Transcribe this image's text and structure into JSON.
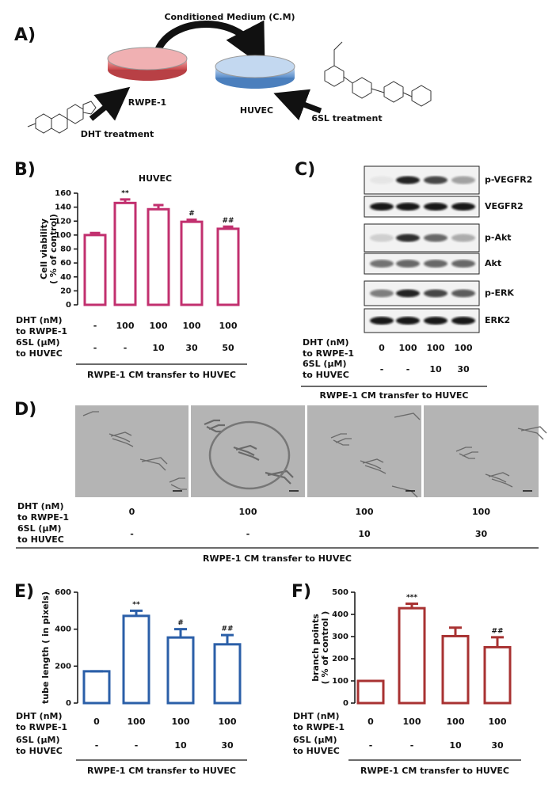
{
  "panel_a": {
    "label": "A)",
    "title": "Conditioned Medium (C.M)",
    "source": "RWPE-1",
    "target": "HUVEC",
    "left_treatment": "DHT treatment",
    "right_treatment": "6SL treatment"
  },
  "chart_data": [
    {
      "type": "bar",
      "label": "B)",
      "title": "HUVEC",
      "ylabel": [
        "Cell viability",
        "( % of control)"
      ],
      "values": [
        100,
        146,
        137,
        119,
        109
      ],
      "errors": [
        3,
        5,
        6,
        3,
        3
      ],
      "significance": [
        null,
        "**",
        null,
        "#",
        "##"
      ],
      "color": "#c2306f",
      "ylim": [
        0,
        160
      ],
      "yticks": [
        0,
        20,
        40,
        60,
        80,
        100,
        120,
        140,
        160
      ],
      "treatments": [
        {
          "label": [
            "DHT (nM)",
            "to RWPE-1"
          ],
          "values": [
            "-",
            "100",
            "100",
            "100",
            "100"
          ]
        },
        {
          "label": [
            "6SL (μM)",
            "to HUVEC"
          ],
          "values": [
            "-",
            "-",
            "10",
            "30",
            "50"
          ]
        }
      ],
      "footer": "RWPE-1 CM transfer to HUVEC"
    },
    {
      "type": "bar",
      "label": "E)",
      "ylabel": [
        "tube length ( in pixels)"
      ],
      "values": [
        172,
        472,
        355,
        318
      ],
      "errors": [
        0,
        28,
        45,
        50
      ],
      "significance": [
        null,
        "**",
        "#",
        "##"
      ],
      "color": "#2b5fa8",
      "ylim": [
        0,
        600
      ],
      "yticks": [
        0,
        200,
        400,
        600
      ],
      "treatments": [
        {
          "label": [
            "DHT (nM)",
            "to RWPE-1"
          ],
          "values": [
            "0",
            "100",
            "100",
            "100"
          ]
        },
        {
          "label": [
            "6SL (μM)",
            "to HUVEC"
          ],
          "values": [
            "-",
            "-",
            "10",
            "30"
          ]
        }
      ],
      "footer": "RWPE-1 CM transfer to HUVEC"
    },
    {
      "type": "bar",
      "label": "F)",
      "ylabel": [
        "branch points",
        "( % of control )"
      ],
      "values": [
        100,
        428,
        302,
        252
      ],
      "errors": [
        0,
        20,
        38,
        45
      ],
      "significance": [
        null,
        "***",
        null,
        "##"
      ],
      "color": "#a83232",
      "ylim": [
        0,
        500
      ],
      "yticks": [
        0,
        100,
        200,
        300,
        400,
        500
      ],
      "treatments": [
        {
          "label": [
            "DHT (nM)",
            "to RWPE-1"
          ],
          "values": [
            "0",
            "100",
            "100",
            "100"
          ]
        },
        {
          "label": [
            "6SL (μM)",
            "to HUVEC"
          ],
          "values": [
            "-",
            "-",
            "10",
            "30"
          ]
        }
      ],
      "footer": "RWPE-1 CM transfer to HUVEC"
    }
  ],
  "panel_c": {
    "label": "C)",
    "blots": [
      "p-VEGFR2",
      "VEGFR2",
      "p-Akt",
      "Akt",
      "p-ERK",
      "ERK2"
    ],
    "treatments": [
      {
        "label": [
          "DHT (nM)",
          "to RWPE-1"
        ],
        "values": [
          "0",
          "100",
          "100",
          "100"
        ]
      },
      {
        "label": [
          "6SL (μM)",
          "to HUVEC"
        ],
        "values": [
          "-",
          "-",
          "10",
          "30"
        ]
      }
    ],
    "footer": "RWPE-1 CM transfer to HUVEC"
  },
  "panel_d": {
    "label": "D)",
    "treatments": [
      {
        "label": [
          "DHT (nM)",
          "to RWPE-1"
        ],
        "values": [
          "0",
          "100",
          "100",
          "100"
        ]
      },
      {
        "label": [
          "6SL (μM)",
          "to HUVEC"
        ],
        "values": [
          "-",
          "-",
          "10",
          "30"
        ]
      }
    ],
    "footer": "RWPE-1 CM transfer to HUVEC"
  }
}
